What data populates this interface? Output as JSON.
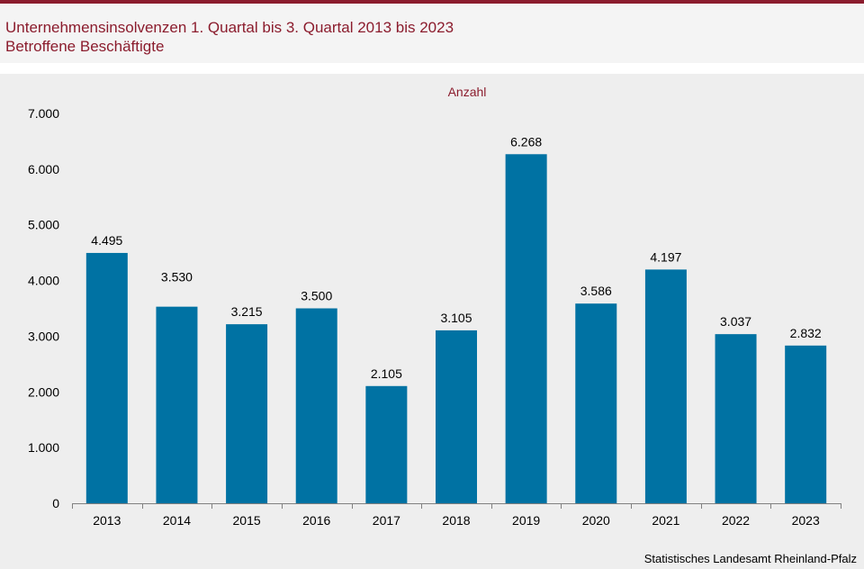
{
  "header": {
    "title": "Unternehmensinsolvenzen 1. Quartal bis 3. Quartal 2013 bis 2023",
    "subtitle": "Betroffene Beschäftigte"
  },
  "source": "Statistisches Landesamt Rheinland-Pfalz",
  "colors": {
    "bar": "#0072a3",
    "accent": "#8b1c2d",
    "background": "#eeeeee"
  },
  "chart_data": {
    "type": "bar",
    "title": "Unternehmensinsolvenzen 1. Quartal bis 3. Quartal 2013 bis 2023",
    "subtitle": "Betroffene Beschäftigte",
    "ylabel": "Anzahl",
    "xlabel": "",
    "categories": [
      "2013",
      "2014",
      "2015",
      "2016",
      "2017",
      "2018",
      "2019",
      "2020",
      "2021",
      "2022",
      "2023"
    ],
    "values": [
      4495,
      3530,
      3215,
      3500,
      2105,
      3105,
      6268,
      3586,
      4197,
      3037,
      2832
    ],
    "value_labels": [
      "4.495",
      "3.530",
      "3.215",
      "3.500",
      "2.105",
      "3.105",
      "6.268",
      "3.586",
      "4.197",
      "3.037",
      "2.832"
    ],
    "ylim": [
      0,
      7000
    ],
    "yticks": [
      0,
      1000,
      2000,
      3000,
      4000,
      5000,
      6000,
      7000
    ],
    "ytick_labels": [
      "0",
      "1.000",
      "2.000",
      "3.000",
      "4.000",
      "5.000",
      "6.000",
      "7.000"
    ],
    "grid": false,
    "legend": "none"
  }
}
